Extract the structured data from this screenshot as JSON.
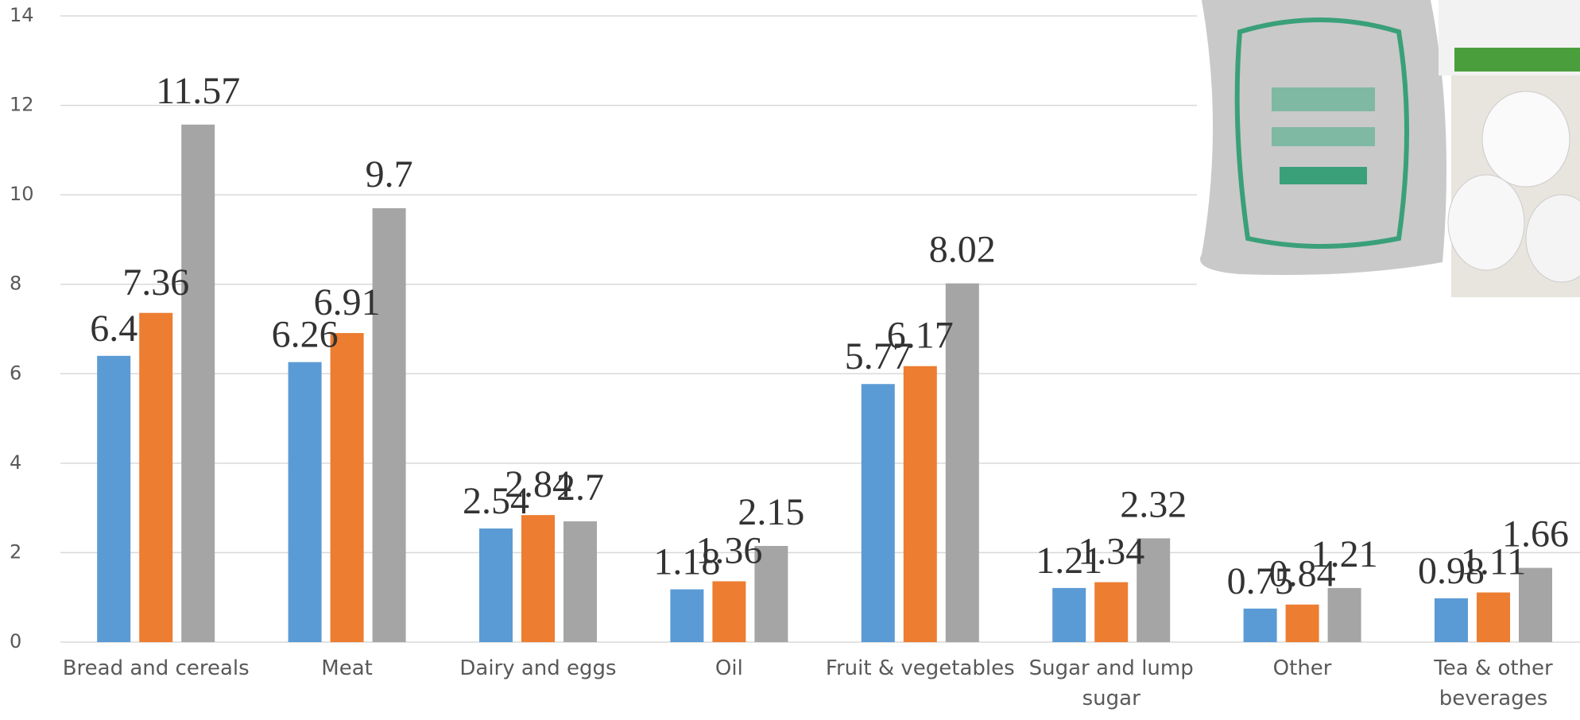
{
  "chart_data": {
    "type": "bar",
    "categories": [
      "Bread and cereals",
      "Meat",
      "Dairy and eggs",
      "Oil",
      "Fruit & vegetables",
      "Sugar and lump sugar",
      "Other",
      "Tea & other beverages"
    ],
    "series": [
      {
        "color": "#5b9bd5",
        "values": [
          6.4,
          6.26,
          2.54,
          1.18,
          5.77,
          1.21,
          0.75,
          0.98
        ]
      },
      {
        "color": "#ed7d31",
        "values": [
          7.36,
          6.91,
          2.84,
          1.36,
          6.17,
          1.34,
          0.84,
          1.11
        ]
      },
      {
        "color": "#a5a5a5",
        "values": [
          11.57,
          9.7,
          2.7,
          2.15,
          8.02,
          2.32,
          1.21,
          1.66
        ]
      }
    ],
    "ylim": [
      0,
      14
    ],
    "yticks": [
      0,
      2,
      4,
      6,
      8,
      10,
      12,
      14
    ],
    "grid": true
  }
}
